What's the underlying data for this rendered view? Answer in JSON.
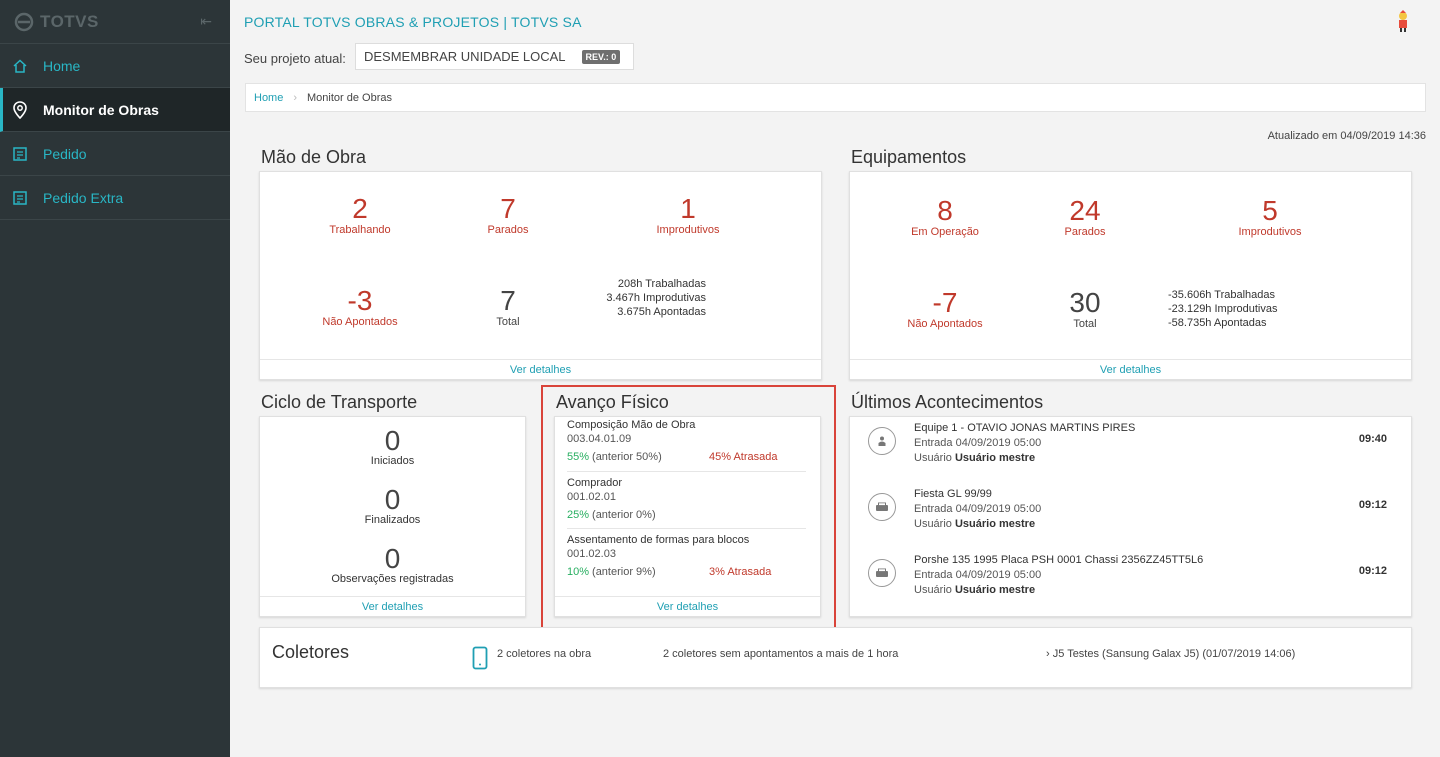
{
  "app": {
    "logo_text": "TOTVS"
  },
  "sidebar": {
    "items": [
      {
        "label": "Home",
        "icon": "home-icon"
      },
      {
        "label": "Monitor de Obras",
        "icon": "location-pin-icon",
        "active": true
      },
      {
        "label": "Pedido",
        "icon": "document-icon"
      },
      {
        "label": "Pedido Extra",
        "icon": "document-icon"
      }
    ]
  },
  "header": {
    "portal_title": "PORTAL TOTVS OBRAS & PROJETOS | TOTVS SA",
    "project_label": "Seu projeto atual:",
    "project_name": "DESMEMBRAR UNIDADE LOCAL",
    "revision": "REV.: 0"
  },
  "breadcrumb": {
    "home": "Home",
    "current": "Monitor de Obras"
  },
  "updated": "Atualizado em 04/09/2019 14:36",
  "mao_de_obra": {
    "title": "Mão de Obra",
    "trabalhando": {
      "value": "2",
      "label": "Trabalhando"
    },
    "parados": {
      "value": "7",
      "label": "Parados"
    },
    "improdutivos": {
      "value": "1",
      "label": "Improdutivos"
    },
    "nao_apontados": {
      "value": "-3",
      "label": "Não Apontados"
    },
    "total": {
      "value": "7",
      "label": "Total"
    },
    "hours": [
      "208h Trabalhadas",
      "3.467h Improdutivas",
      "3.675h Apontadas"
    ],
    "footer": "Ver detalhes"
  },
  "equipamentos": {
    "title": "Equipamentos",
    "em_operacao": {
      "value": "8",
      "label": "Em Operação"
    },
    "parados": {
      "value": "24",
      "label": "Parados"
    },
    "improdutivos": {
      "value": "5",
      "label": "Improdutivos"
    },
    "nao_apontados": {
      "value": "-7",
      "label": "Não Apontados"
    },
    "total": {
      "value": "30",
      "label": "Total"
    },
    "hours": [
      "-35.606h Trabalhadas",
      "-23.129h Improdutivas",
      "-58.735h Apontadas"
    ],
    "footer": "Ver detalhes"
  },
  "ciclo_transporte": {
    "title": "Ciclo de Transporte",
    "iniciados": {
      "value": "0",
      "label": "Iniciados"
    },
    "finalizados": {
      "value": "0",
      "label": "Finalizados"
    },
    "observacoes": {
      "value": "0",
      "label": "Observações registradas"
    },
    "footer": "Ver detalhes"
  },
  "avanco_fisico": {
    "title": "Avanço Físico",
    "items": [
      {
        "title": "Composição Mão de Obra",
        "code": "003.04.01.09",
        "pct": "55%",
        "anterior": "(anterior 50%)",
        "late": "45% Atrasada"
      },
      {
        "title": "Comprador",
        "code": "001.02.01",
        "pct": "25%",
        "anterior": "(anterior 0%)",
        "late": ""
      },
      {
        "title": "Assentamento de formas para blocos",
        "code": "001.02.03",
        "pct": "10%",
        "anterior": "(anterior 9%)",
        "late": "3% Atrasada"
      }
    ],
    "footer": "Ver detalhes"
  },
  "ultimos": {
    "title": "Últimos Acontecimentos",
    "events": [
      {
        "title": "Equipe 1 - OTAVIO JONAS MARTINS PIRES",
        "entry": "Entrada 04/09/2019 05:00",
        "user_label": "Usuário",
        "user": "Usuário mestre",
        "time": "09:40",
        "icon": "person-icon"
      },
      {
        "title": "Fiesta GL 99/99",
        "entry": "Entrada 04/09/2019 05:00",
        "user_label": "Usuário",
        "user": "Usuário mestre",
        "time": "09:12",
        "icon": "vehicle-icon"
      },
      {
        "title": "Porshe 135 1995 Placa PSH 0001 Chassi 2356ZZ45TT5L6",
        "entry": "Entrada 04/09/2019 05:00",
        "user_label": "Usuário",
        "user": "Usuário mestre",
        "time": "09:12",
        "icon": "vehicle-icon"
      }
    ]
  },
  "coletores": {
    "title": "Coletores",
    "na_obra": "2 coletores na obra",
    "sem_apontamentos": "2 coletores sem apontamentos a mais de 1 hora",
    "device": "› J5 Testes (Sansung Galax J5) (01/07/2019 14:06)"
  },
  "colors": {
    "accent": "#1f9fb3",
    "red": "#c0392b",
    "green": "#27ae60",
    "sidebar": "#2c3538"
  }
}
